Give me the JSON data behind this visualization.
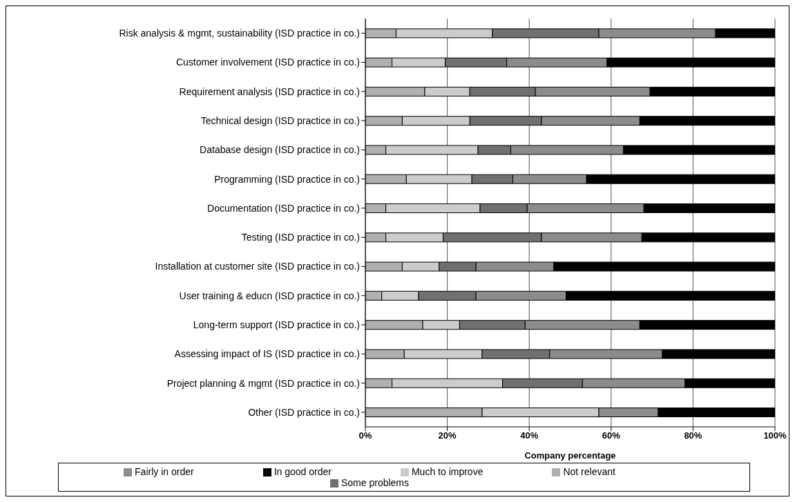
{
  "chart_data": {
    "type": "bar",
    "orientation": "horizontal",
    "stacked": true,
    "categories": [
      "Risk analysis & mgmt, sustainability (ISD practice in co.)",
      "Customer involvement (ISD practice in co.)",
      "Requirement analysis (ISD practice in co.)",
      "Technical design (ISD practice in co.)",
      "Database design (ISD practice in co.)",
      "Programming (ISD practice in co.)",
      "Documentation (ISD practice in co.)",
      "Testing (ISD practice in co.)",
      "Installation at customer site (ISD practice in co.)",
      "User training & educn (ISD practice in co.)",
      "Long-term support (ISD practice in co.)",
      "Assessing impact of IS (ISD practice in co.)",
      "Project planning & mgmt (ISD practice in co.)",
      "Other (ISD practice in co.)"
    ],
    "series": [
      {
        "name": "Not relevant",
        "color": "#b0b0b0",
        "values": [
          7.5,
          6.5,
          14.5,
          9,
          5,
          10,
          5,
          5,
          9,
          4,
          14,
          9.5,
          6.5,
          28.5
        ]
      },
      {
        "name": "Much to improve",
        "color": "#cccccc",
        "values": [
          23.5,
          13,
          11,
          16.5,
          22.5,
          16,
          23,
          14,
          9,
          9,
          9,
          19,
          27,
          28.5
        ]
      },
      {
        "name": "Some problems",
        "color": "#707070",
        "values": [
          26,
          15,
          16,
          17.5,
          8,
          10,
          11.5,
          24,
          9,
          14,
          16,
          16.5,
          19.5,
          0
        ]
      },
      {
        "name": "Fairly in order",
        "color": "#8c8c8c",
        "values": [
          28.5,
          24.5,
          28,
          24,
          27.5,
          18,
          28.5,
          24.5,
          19,
          22,
          28,
          27.5,
          25,
          14.5
        ]
      },
      {
        "name": "In good order",
        "color": "#000000",
        "values": [
          14.5,
          41,
          30.5,
          33,
          37,
          46,
          32,
          32.5,
          54,
          51,
          33,
          27.5,
          22,
          28.5
        ]
      }
    ],
    "xlabel": "Company percentage",
    "xlim": [
      0,
      100
    ],
    "xticks": [
      {
        "value": 0,
        "label": "0%"
      },
      {
        "value": 20,
        "label": "20%"
      },
      {
        "value": 40,
        "label": "40%"
      },
      {
        "value": 60,
        "label": "60%"
      },
      {
        "value": 80,
        "label": "80%"
      },
      {
        "value": 100,
        "label": "100%"
      }
    ],
    "grid": "x",
    "legend": "bottom"
  }
}
